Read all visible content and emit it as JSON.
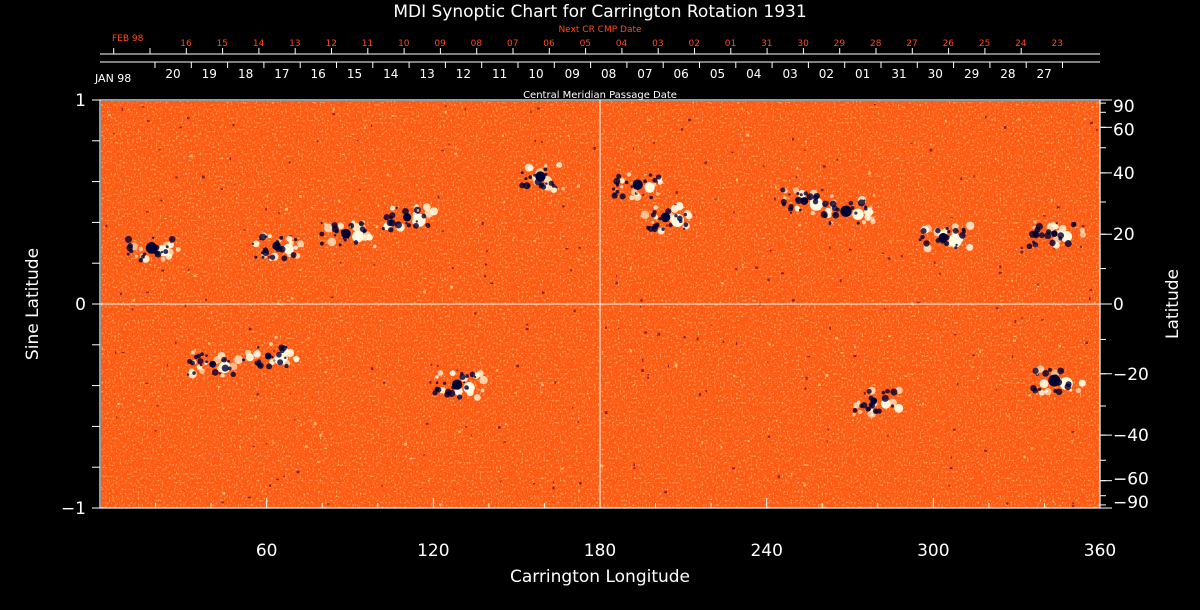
{
  "title": "MDI Synoptic Chart for Carrington Rotation 1931",
  "top_axis": {
    "title": "Next CR CMP Date",
    "month_label": "FEB 98",
    "day_labels": [
      "16",
      "15",
      "14",
      "13",
      "12",
      "11",
      "10",
      "09",
      "08",
      "07",
      "06",
      "05",
      "04",
      "03",
      "02",
      "01",
      "31",
      "30",
      "29",
      "28",
      "27",
      "26",
      "25",
      "24",
      "23"
    ]
  },
  "middle_axis": {
    "title": "Central Meridian Passage Date",
    "month_label": "JAN 98",
    "day_labels": [
      "20",
      "19",
      "18",
      "17",
      "16",
      "15",
      "14",
      "13",
      "12",
      "11",
      "10",
      "09",
      "08",
      "07",
      "06",
      "05",
      "04",
      "03",
      "02",
      "01",
      "31",
      "30",
      "29",
      "28",
      "27"
    ]
  },
  "x_axis": {
    "label": "Carrington Longitude",
    "ticks": [
      60,
      120,
      180,
      240,
      300,
      360
    ],
    "range": [
      0,
      360
    ]
  },
  "y_axis_left": {
    "label": "Sine Latitude",
    "ticks": [
      1,
      0,
      -1
    ],
    "tick_labels": [
      "1",
      "0",
      "−1"
    ],
    "range": [
      -1,
      1
    ]
  },
  "y_axis_right": {
    "label": "Latitude",
    "ticks": [
      90,
      60,
      40,
      20,
      0,
      -20,
      -40,
      -60,
      -90
    ],
    "tick_labels": [
      "90",
      "60",
      "40",
      "20",
      "0",
      "−20",
      "−40",
      "−60",
      "−90"
    ]
  },
  "colors": {
    "background": "#000000",
    "top_axis": "#ff4a1a",
    "field_base": "#ff5a12",
    "positive_polarity": "#fffbe0",
    "negative_polarity": "#000033",
    "axis": "#ffffff"
  },
  "regions": [
    {
      "lon": 20,
      "lat": 0.27,
      "polarity": "bipole"
    },
    {
      "lon": 65,
      "lat": 0.28,
      "polarity": "bipole"
    },
    {
      "lon": 90,
      "lat": 0.34,
      "polarity": "bipole"
    },
    {
      "lon": 112,
      "lat": 0.42,
      "polarity": "bipole"
    },
    {
      "lon": 160,
      "lat": 0.62,
      "polarity": "negative"
    },
    {
      "lon": 195,
      "lat": 0.58,
      "polarity": "bipole"
    },
    {
      "lon": 205,
      "lat": 0.42,
      "polarity": "bipole"
    },
    {
      "lon": 255,
      "lat": 0.5,
      "polarity": "bipole"
    },
    {
      "lon": 270,
      "lat": 0.45,
      "polarity": "bipole"
    },
    {
      "lon": 305,
      "lat": 0.32,
      "polarity": "bipole"
    },
    {
      "lon": 345,
      "lat": 0.34,
      "polarity": "bipole"
    },
    {
      "lon": 42,
      "lat": -0.3,
      "polarity": "bipole"
    },
    {
      "lon": 62,
      "lat": -0.26,
      "polarity": "bipole"
    },
    {
      "lon": 130,
      "lat": -0.4,
      "polarity": "bipole"
    },
    {
      "lon": 280,
      "lat": -0.48,
      "polarity": "bipole"
    },
    {
      "lon": 345,
      "lat": -0.38,
      "polarity": "bipole"
    }
  ]
}
